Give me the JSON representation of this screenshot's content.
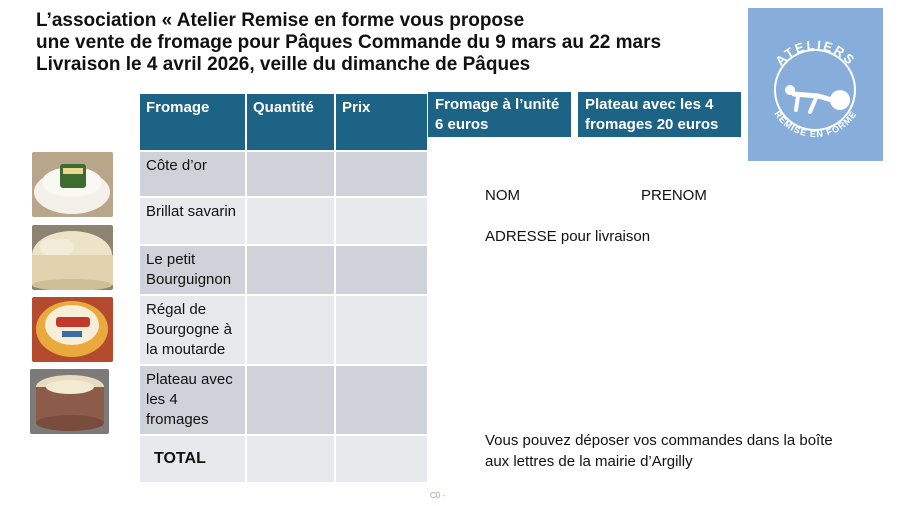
{
  "title": {
    "line1": "L’association « Atelier Remise en forme vous propose",
    "line2": "une vente de fromage pour Pâques Commande du 9 mars au 22 mars",
    "line3": "Livraison le 4 avril 2026, veille du dimanche de Pâques"
  },
  "logo": {
    "top_text": "ATELIERS",
    "bottom_text": "REMISE EN FORME",
    "background": "#87aedb"
  },
  "table": {
    "headers": [
      "Fromage",
      "Quantité",
      "Prix"
    ],
    "rows": [
      {
        "name": "Côte d’or",
        "quantite": "",
        "prix": ""
      },
      {
        "name": "Brillat savarin",
        "quantite": "",
        "prix": ""
      },
      {
        "name": "Le petit Bourguignon",
        "quantite": "",
        "prix": ""
      },
      {
        "name": "Régal de Bourgogne à la moutarde",
        "quantite": "",
        "prix": ""
      },
      {
        "name": "Plateau avec les 4 fromages",
        "quantite": "",
        "prix": ""
      }
    ],
    "total_label": "TOTAL",
    "header_color": "#1c6386"
  },
  "prices": {
    "unit": "Fromage à l’unité 6 euros",
    "plate": "Plateau avec les 4 fromages 20 euros"
  },
  "form": {
    "nom": "NOM",
    "prenom": "PRENOM",
    "adresse": "ADRESSE pour livraison"
  },
  "deposit_note": "Vous pouvez déposer vos commandes dans la boîte aux lettres de la mairie d’Argilly",
  "footer_tag": "C0 -",
  "photos": [
    "cheese-cote-dor-photo",
    "cheese-brillat-savarin-photo",
    "cheese-petit-bourguignon-photo",
    "cheese-plateau-photo"
  ]
}
